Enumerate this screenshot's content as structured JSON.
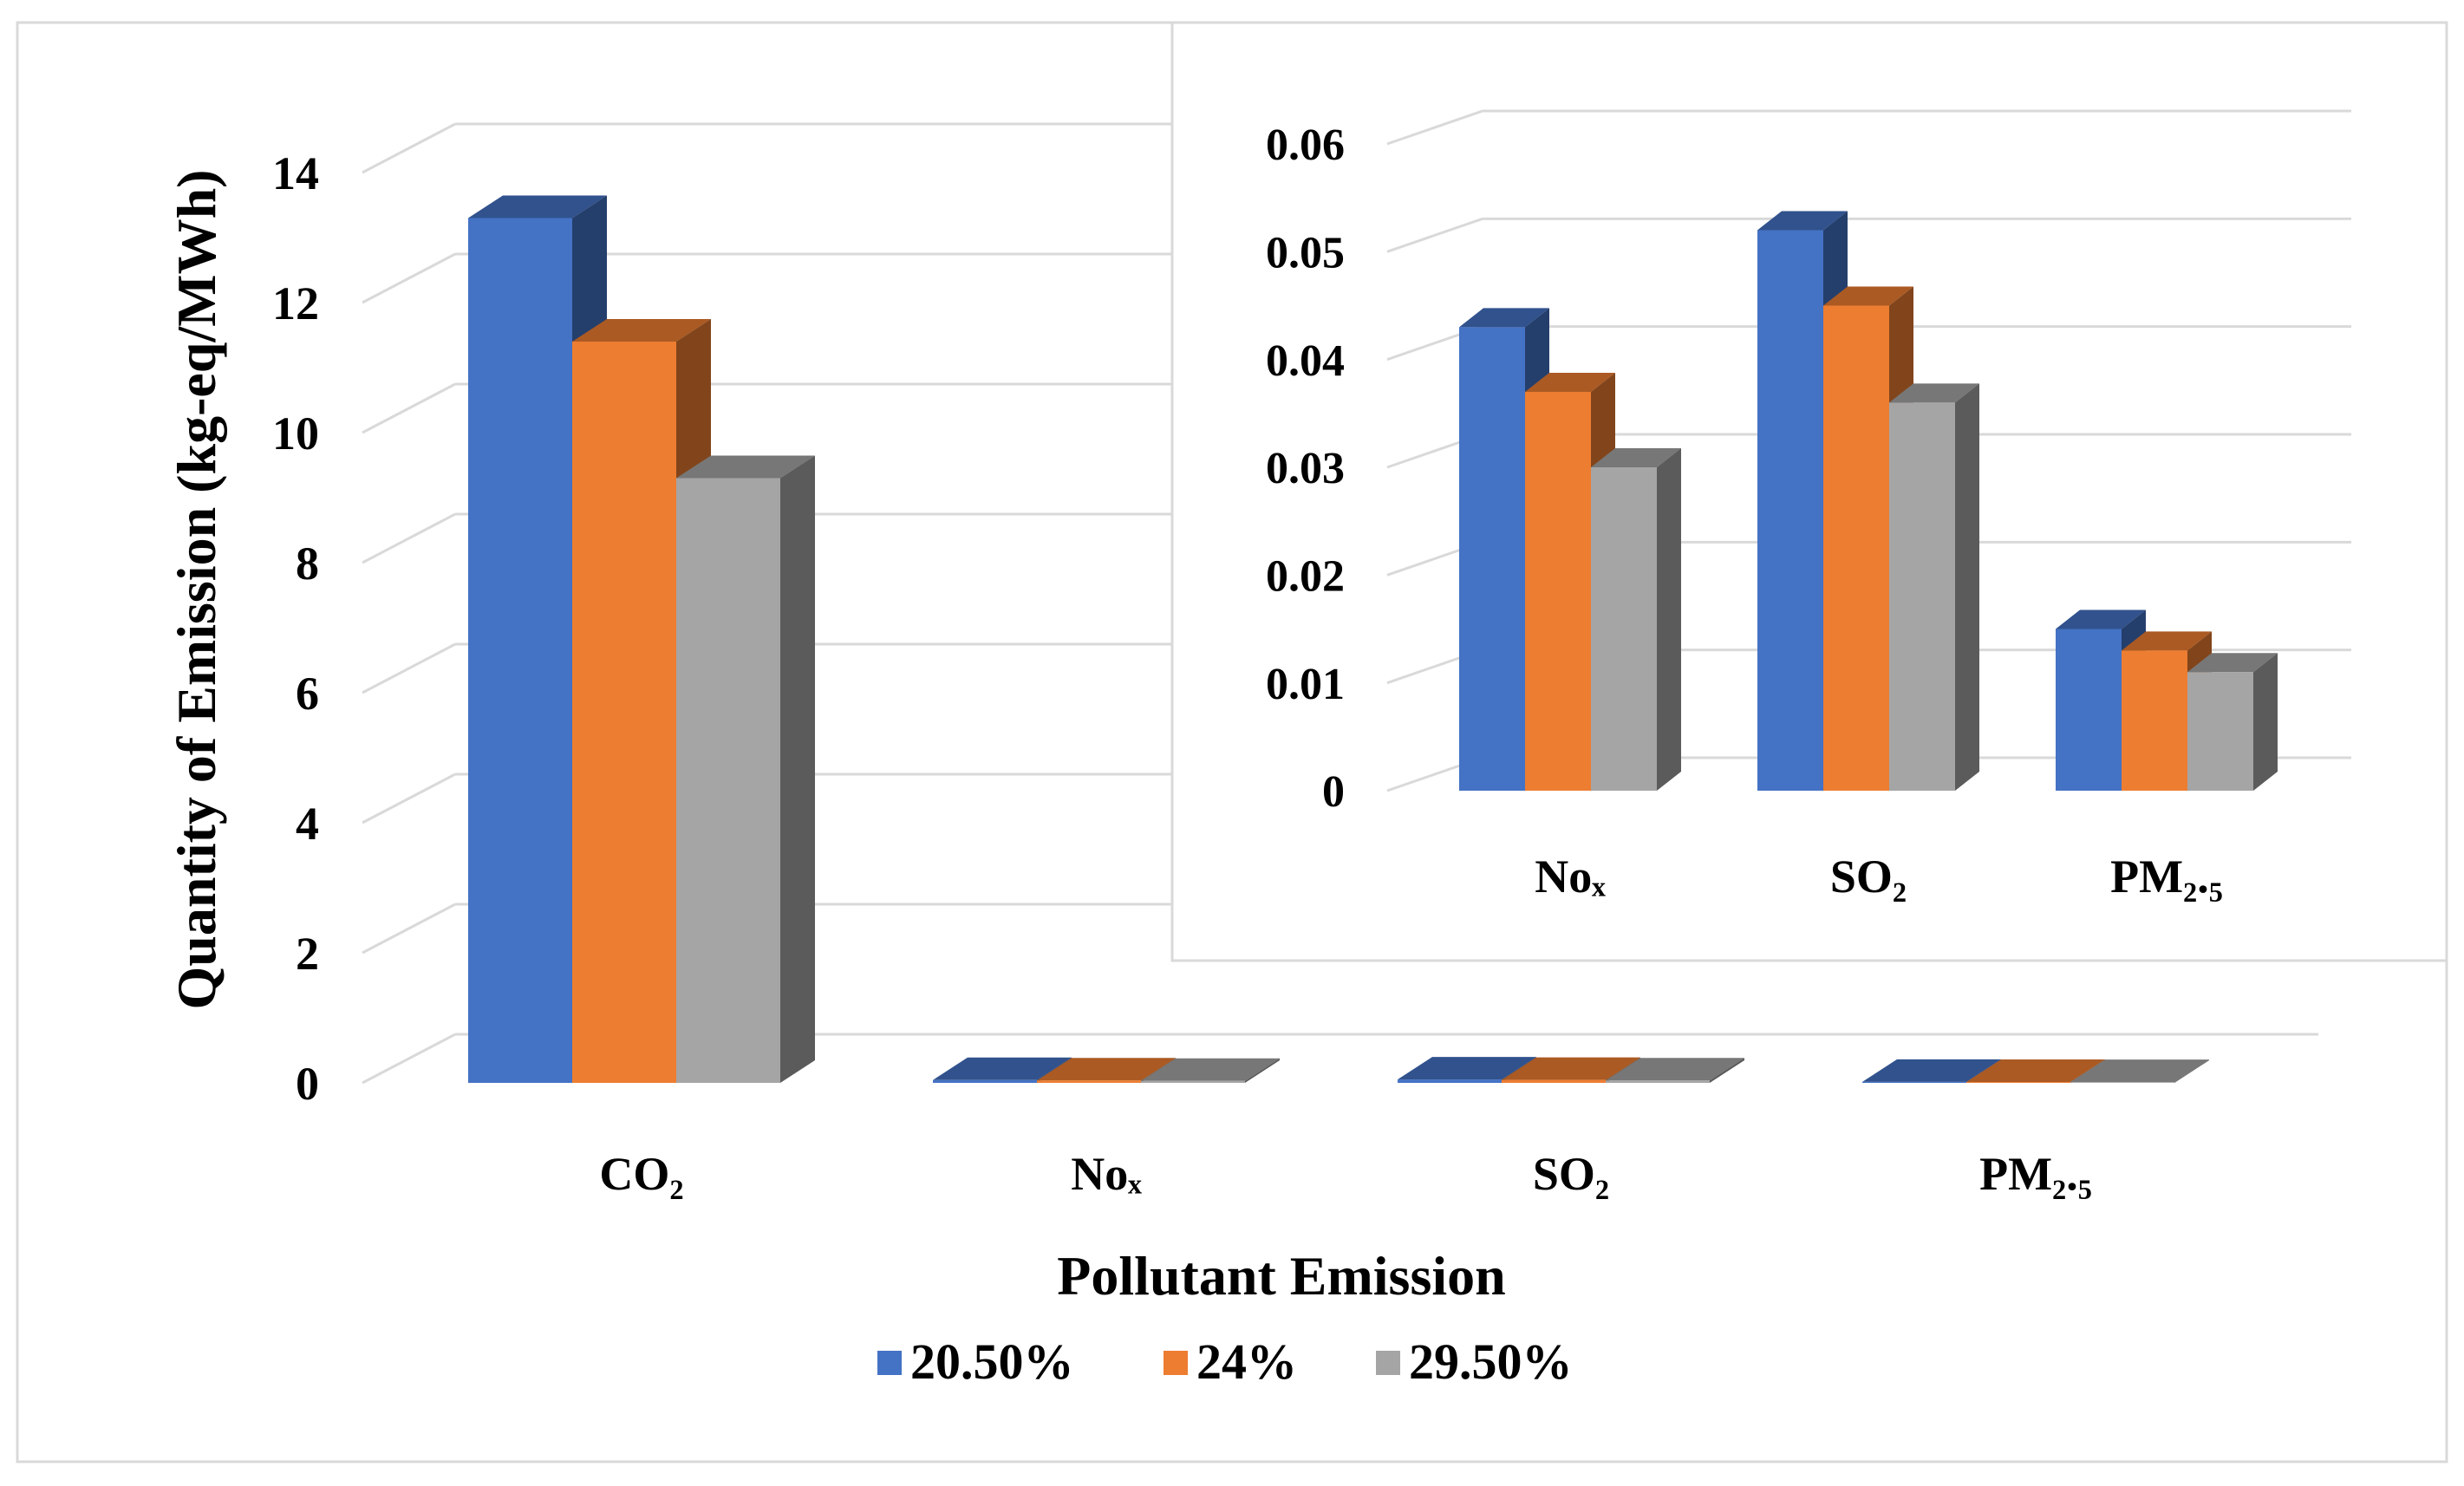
{
  "chart_data": [
    {
      "type": "bar",
      "title": "",
      "xlabel": "Pollutant Emission",
      "ylabel": "Quantity of Emission (kg-eq/MWh)",
      "categories": [
        "CO₂",
        "Noₓ",
        "SO₂",
        "PM₂.₅"
      ],
      "ylim": [
        0,
        14
      ],
      "yticks": [
        "0",
        "2",
        "4",
        "6",
        "8",
        "10",
        "12",
        "14"
      ],
      "grid": true,
      "legend_position": "bottom",
      "series": [
        {
          "name": "20.50%",
          "color": "#4472C4",
          "values": [
            13.3,
            0.043,
            0.052,
            0.015
          ]
        },
        {
          "name": "24%",
          "color": "#ED7D31",
          "values": [
            11.4,
            0.037,
            0.045,
            0.013
          ]
        },
        {
          "name": "29.50%",
          "color": "#A5A5A5",
          "values": [
            9.3,
            0.03,
            0.036,
            0.011
          ]
        }
      ]
    },
    {
      "type": "bar",
      "title": "",
      "xlabel": "",
      "ylabel": "",
      "categories": [
        "Noₓ",
        "SO₂",
        "PM₂.₅"
      ],
      "ylim": [
        0,
        0.06
      ],
      "yticks": [
        "0",
        "0.01",
        "0.02",
        "0.03",
        "0.04",
        "0.05",
        "0.06"
      ],
      "grid": true,
      "legend_position": "none",
      "series": [
        {
          "name": "20.50%",
          "color": "#4472C4",
          "values": [
            0.043,
            0.052,
            0.015
          ]
        },
        {
          "name": "24%",
          "color": "#ED7D31",
          "values": [
            0.037,
            0.045,
            0.013
          ]
        },
        {
          "name": "29.50%",
          "color": "#A5A5A5",
          "values": [
            0.03,
            0.036,
            0.011
          ]
        }
      ]
    }
  ]
}
